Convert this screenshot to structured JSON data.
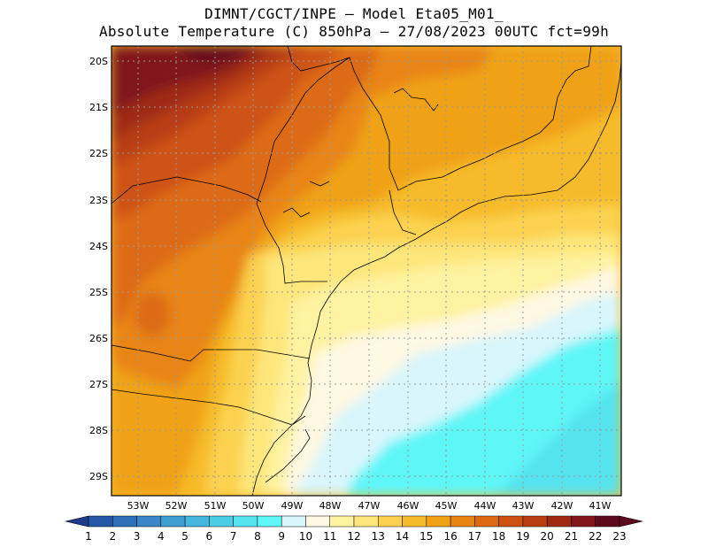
{
  "title": {
    "line1": "DIMNT/CGCT/INPE –  Model Eta05_M01_",
    "line2": "Absolute Temperature (C) 850hPa –  27/08/2023 00UTC fct=99h"
  },
  "map": {
    "lat_labels": [
      "20S",
      "21S",
      "22S",
      "23S",
      "24S",
      "25S",
      "26S",
      "27S",
      "28S",
      "29S"
    ],
    "lon_labels": [
      "53W",
      "52W",
      "51W",
      "50W",
      "49W",
      "48W",
      "47W",
      "46W",
      "45W",
      "44W",
      "43W",
      "42W",
      "41W"
    ],
    "lat_range": [
      -29.4,
      -19.8
    ],
    "lon_range": [
      -53.6,
      -40.6
    ],
    "grid": true
  },
  "colorbar": {
    "labels": [
      "1",
      "2",
      "3",
      "4",
      "5",
      "6",
      "7",
      "8",
      "9",
      "10",
      "11",
      "12",
      "13",
      "14",
      "15",
      "16",
      "17",
      "18",
      "19",
      "20",
      "21",
      "22",
      "23"
    ],
    "colors": [
      "#1f3a8a",
      "#2556a6",
      "#2f6fb8",
      "#3a86c8",
      "#3f9ed2",
      "#45b6dc",
      "#4ccde6",
      "#55e3ef",
      "#5ff6f8",
      "#d8f6fc",
      "#fff8e2",
      "#fff2a0",
      "#fde67a",
      "#fbd24f",
      "#f6bb2a",
      "#f0a215",
      "#e88512",
      "#dd6a12",
      "#cd5212",
      "#b83e12",
      "#9e2a14",
      "#80151b",
      "#5e0a1e"
    ]
  }
}
